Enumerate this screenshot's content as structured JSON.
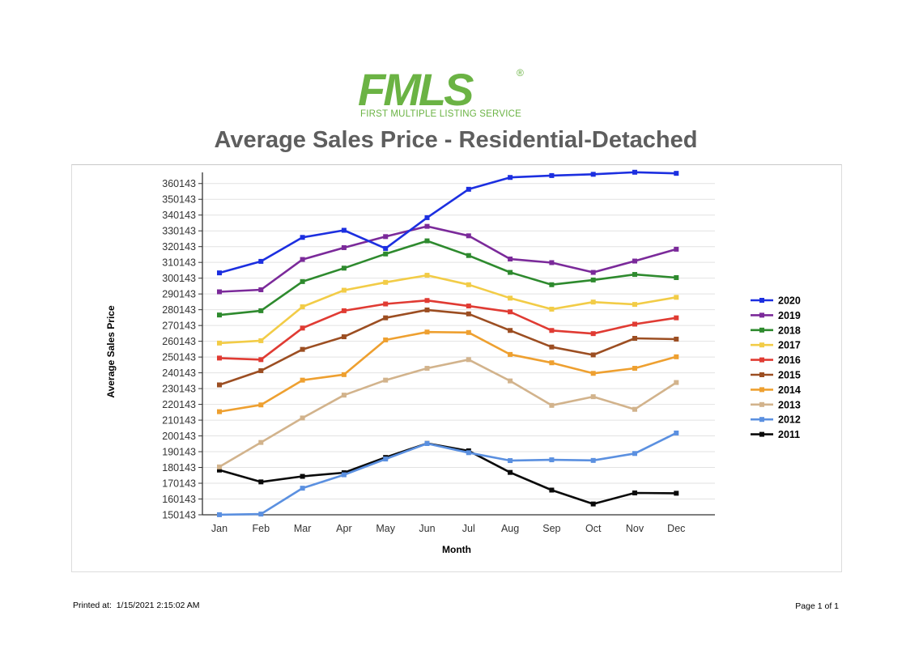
{
  "header": {
    "logo_main": "FMLS",
    "logo_registered": "®",
    "logo_sub": "FIRST MULTIPLE LISTING SERVICE",
    "logo_color": "#6bb344"
  },
  "report_title": "Average Sales Price - Residential-Detached",
  "footer": {
    "printed_label": "Printed at:",
    "printed_value": "1/15/2021 2:15:02 AM",
    "page": "Page 1 of 1"
  },
  "chart_data": {
    "type": "line",
    "xlabel": "Month",
    "ylabel": "Average Sales Price",
    "categories": [
      "Jan",
      "Feb",
      "Mar",
      "Apr",
      "May",
      "Jun",
      "Jul",
      "Aug",
      "Sep",
      "Oct",
      "Nov",
      "Dec"
    ],
    "ylim": [
      150143,
      365143
    ],
    "yticks": [
      150143,
      160143,
      170143,
      180143,
      190143,
      200143,
      210143,
      220143,
      230143,
      240143,
      250143,
      260143,
      270143,
      280143,
      290143,
      300143,
      310143,
      320143,
      330143,
      340143,
      350143,
      360143
    ],
    "grid": true,
    "legend_position": "right",
    "series": [
      {
        "name": "2020",
        "color": "#1c2fe0",
        "values": [
          303500,
          310800,
          326000,
          330500,
          319000,
          338500,
          356500,
          364000,
          365200,
          366000,
          367300,
          366600
        ]
      },
      {
        "name": "2019",
        "color": "#7b2a9a",
        "values": [
          291500,
          292800,
          312000,
          319500,
          326500,
          333000,
          327000,
          312300,
          310000,
          303800,
          311000,
          318500
        ]
      },
      {
        "name": "2018",
        "color": "#2e8a2e",
        "values": [
          276800,
          279500,
          298000,
          306500,
          315500,
          323800,
          314500,
          303800,
          296000,
          299000,
          302500,
          300500
        ]
      },
      {
        "name": "2017",
        "color": "#f2cc47",
        "values": [
          259000,
          260500,
          282000,
          292500,
          297500,
          302000,
          296000,
          287500,
          280500,
          285000,
          283500,
          288000
        ]
      },
      {
        "name": "2016",
        "color": "#e03b33",
        "values": [
          249500,
          248500,
          268500,
          279500,
          283800,
          286000,
          282500,
          278800,
          267000,
          265000,
          271000,
          275000
        ]
      },
      {
        "name": "2015",
        "color": "#9c4e22",
        "values": [
          232500,
          241500,
          255000,
          263000,
          275000,
          280000,
          277500,
          267000,
          256500,
          251500,
          262000,
          261500
        ]
      },
      {
        "name": "2014",
        "color": "#eea030",
        "values": [
          215500,
          219800,
          235500,
          239000,
          261000,
          266000,
          265700,
          251800,
          246500,
          239800,
          243000,
          250300
        ]
      },
      {
        "name": "2013",
        "color": "#d2b38c",
        "values": [
          180500,
          196000,
          211500,
          226000,
          235500,
          243000,
          248500,
          235000,
          219500,
          225000,
          217000,
          234000
        ]
      },
      {
        "name": "2012",
        "color": "#5b90e0",
        "values": [
          150200,
          150600,
          167000,
          175500,
          185500,
          195300,
          189500,
          184500,
          185000,
          184600,
          189000,
          202000
        ]
      },
      {
        "name": "2011",
        "color": "#0a0a0a",
        "values": [
          178500,
          171000,
          174500,
          176800,
          186500,
          195400,
          190700,
          177000,
          165800,
          157000,
          164000,
          163800
        ]
      }
    ]
  }
}
